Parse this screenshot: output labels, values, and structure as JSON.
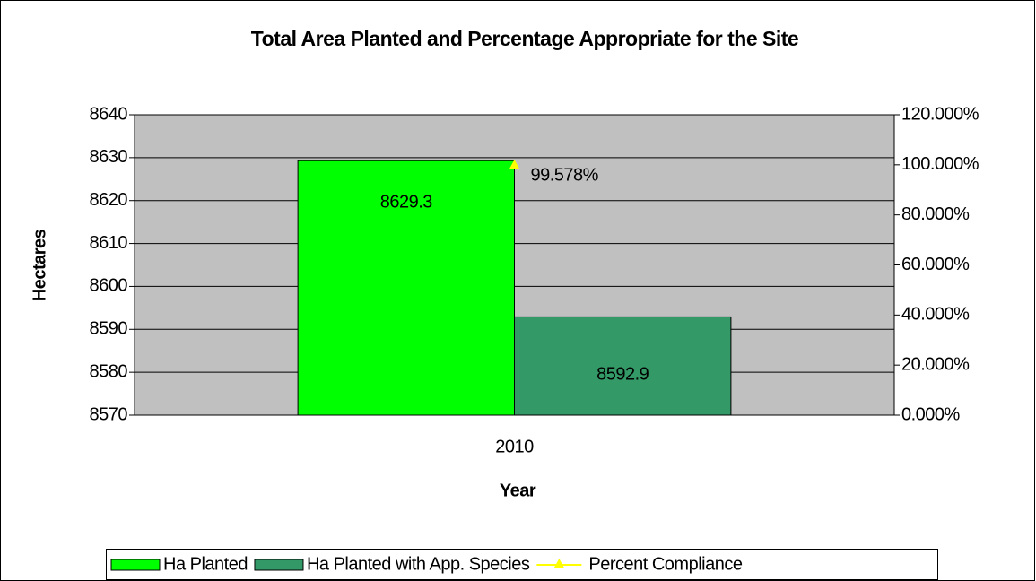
{
  "chart_data": {
    "type": "bar",
    "title": "Total Area Planted and Percentage Appropriate for the Site",
    "x_label": "Year",
    "y_label": "Hectares",
    "categories": [
      "2010"
    ],
    "series": [
      {
        "name": "Ha Planted",
        "color": "#00ff00",
        "values": [
          8629.3
        ]
      },
      {
        "name": "Ha Planted with App. Species",
        "color": "#339966",
        "values": [
          8592.9
        ]
      },
      {
        "name": "Percent Compliance",
        "color": "#ffff00",
        "type": "line",
        "axis": "y2",
        "values": [
          99.578
        ],
        "value_labels": [
          "99.578%"
        ]
      }
    ],
    "ylim": [
      8570,
      8640
    ],
    "yticks": [
      8570,
      8580,
      8590,
      8600,
      8610,
      8620,
      8630,
      8640
    ],
    "y2lim": [
      0,
      120
    ],
    "y2ticks": [
      {
        "value": 0,
        "label": "0.000%"
      },
      {
        "value": 20,
        "label": "20.000%"
      },
      {
        "value": 40,
        "label": "40.000%"
      },
      {
        "value": 60,
        "label": "60.000%"
      },
      {
        "value": 80,
        "label": "80.000%"
      },
      {
        "value": 100,
        "label": "100.000%"
      },
      {
        "value": 120,
        "label": "120.000%"
      }
    ],
    "grid": true,
    "legend": "bottom",
    "plot_background": "#c0c0c0"
  }
}
